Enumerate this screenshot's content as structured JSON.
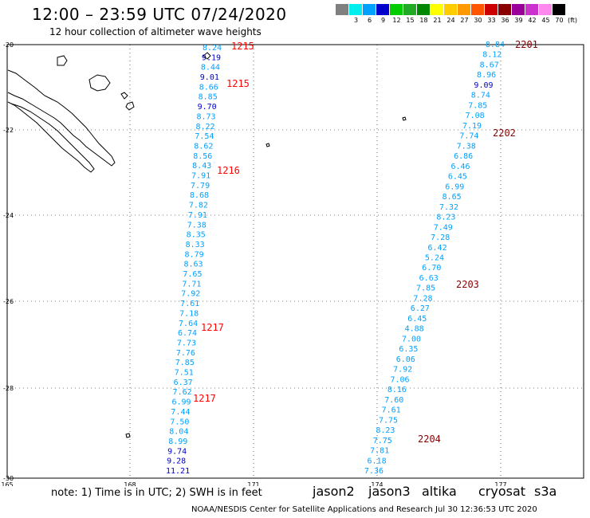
{
  "header": {
    "title": "12:00 – 23:59 UTC 07/24/2020",
    "subtitle": "12 hour collection of altimeter wave heights"
  },
  "legend": {
    "unit": "(ft)",
    "colors": [
      "#808080",
      "#00eeee",
      "#00a0ff",
      "#0000cd",
      "#00cc00",
      "#22aa22",
      "#008800",
      "#ffff00",
      "#ffcc00",
      "#ff9900",
      "#ff5500",
      "#cc0000",
      "#880000",
      "#990099",
      "#cc33cc",
      "#ff88ee",
      "#000000"
    ],
    "labels": [
      "",
      "3",
      "6",
      "9",
      "12",
      "15",
      "18",
      "21",
      "24",
      "27",
      "30",
      "33",
      "36",
      "39",
      "42",
      "45",
      "70"
    ]
  },
  "axes": {
    "lat_labels": [
      "-20",
      "-22",
      "-24",
      "-26",
      "-28",
      "-30"
    ],
    "lon_labels": [
      "165",
      "168",
      "171",
      "174",
      "177"
    ]
  },
  "chart_data": {
    "type": "scatter",
    "track1": {
      "values": [
        "8.24",
        "9.19",
        "8.44",
        "9.01",
        "8.66",
        "8.85",
        "9.70",
        "8.73",
        "8.22",
        "7.54",
        "8.62",
        "8.56",
        "8.43",
        "7.91",
        "7.79",
        "8.68",
        "7.82",
        "7.91",
        "7.38",
        "8.35",
        "8.33",
        "8.79",
        "8.63",
        "7.65",
        "7.71",
        "7.92",
        "7.61",
        "7.18",
        "7.64",
        "6.74",
        "7.73",
        "7.76",
        "7.85",
        "7.51",
        "6.37",
        "7.62",
        "6.99",
        "7.44",
        "7.50",
        "8.04",
        "8.99",
        "9.74",
        "9.28",
        "11.21"
      ],
      "times": [
        "1215",
        "1215",
        "1216",
        "1217",
        "1217"
      ]
    },
    "track2": {
      "values": [
        "8.84",
        "8.12",
        "8.67",
        "8.96",
        "9.09",
        "8.74",
        "7.85",
        "7.08",
        "7.19",
        "7.74",
        "7.38",
        "6.86",
        "6.46",
        "6.45",
        "6.99",
        "8.65",
        "7.32",
        "8.23",
        "7.49",
        "7.28",
        "6.42",
        "5.24",
        "6.70",
        "6.63",
        "7.85",
        "7.28",
        "6.27",
        "6.45",
        "4.88",
        "7.00",
        "6.35",
        "6.06",
        "7.92",
        "7.06",
        "8.16",
        "7.60",
        "7.61",
        "7.75",
        "8.23",
        "7.75",
        "7.81",
        "6.18",
        "7.36"
      ],
      "times": [
        "2201",
        "2202",
        "2203",
        "2204"
      ]
    }
  },
  "footer": {
    "note": "note: 1) Time is in UTC; 2) SWH is in feet",
    "satellites": [
      {
        "name": "jason2",
        "color": "#0000cc"
      },
      {
        "name": "jason3",
        "color": "#009900"
      },
      {
        "name": "altika",
        "color": "#ff9900"
      },
      {
        "name": "cryosat",
        "color": "#cc0000"
      },
      {
        "name": "s3a",
        "color": "#880000"
      }
    ],
    "credit": "NOAA/NESDIS Center for Satellite Applications and Research    Jul 30 12:36:53 UTC 2020"
  }
}
